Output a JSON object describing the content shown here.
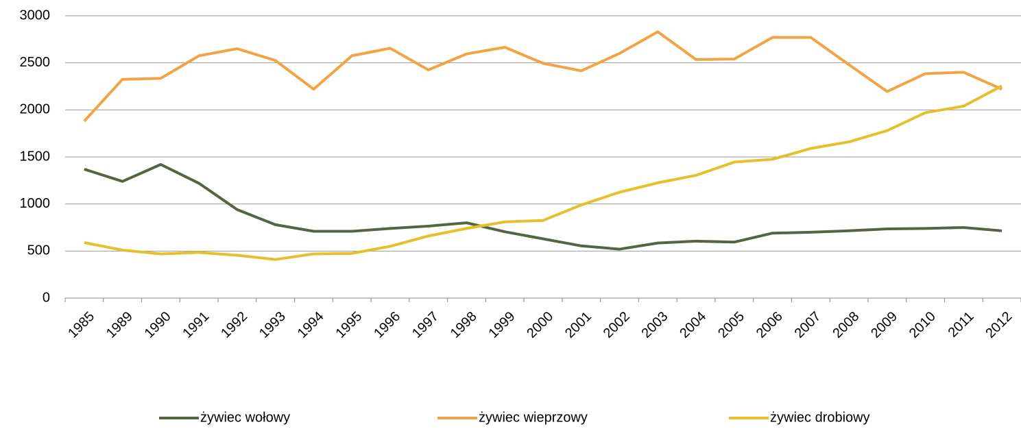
{
  "chart_data": {
    "type": "line",
    "categories": [
      "1985",
      "1989",
      "1990",
      "1991",
      "1992",
      "1993",
      "1994",
      "1995",
      "1996",
      "1997",
      "1998",
      "1999",
      "2000",
      "2001",
      "2002",
      "2003",
      "2004",
      "2005",
      "2006",
      "2007",
      "2008",
      "2009",
      "2010",
      "2011",
      "2012"
    ],
    "series": [
      {
        "name": "żywiec wołowy",
        "color": "#566541",
        "values": [
          1370,
          1240,
          1420,
          1220,
          940,
          780,
          710,
          710,
          740,
          765,
          800,
          705,
          630,
          555,
          520,
          585,
          605,
          595,
          690,
          700,
          715,
          735,
          740,
          750,
          715
        ]
      },
      {
        "name": "żywiec wieprzowy",
        "color": "#f2a445",
        "values": [
          1880,
          2325,
          2335,
          2575,
          2650,
          2525,
          2220,
          2575,
          2655,
          2425,
          2595,
          2665,
          2495,
          2415,
          2600,
          2830,
          2535,
          2540,
          2770,
          2770,
          2480,
          2195,
          2385,
          2400,
          2220
        ]
      },
      {
        "name": "żywiec drobiowy",
        "color": "#e6c02c",
        "values": [
          590,
          510,
          470,
          485,
          455,
          410,
          470,
          475,
          550,
          660,
          740,
          810,
          825,
          990,
          1125,
          1225,
          1305,
          1445,
          1475,
          1590,
          1660,
          1780,
          1970,
          2040,
          2255
        ]
      }
    ],
    "ylim": [
      0,
      3000
    ],
    "yticks": [
      0,
      500,
      1000,
      1500,
      2000,
      2500,
      3000
    ],
    "grid": true,
    "legend": "bottom"
  }
}
